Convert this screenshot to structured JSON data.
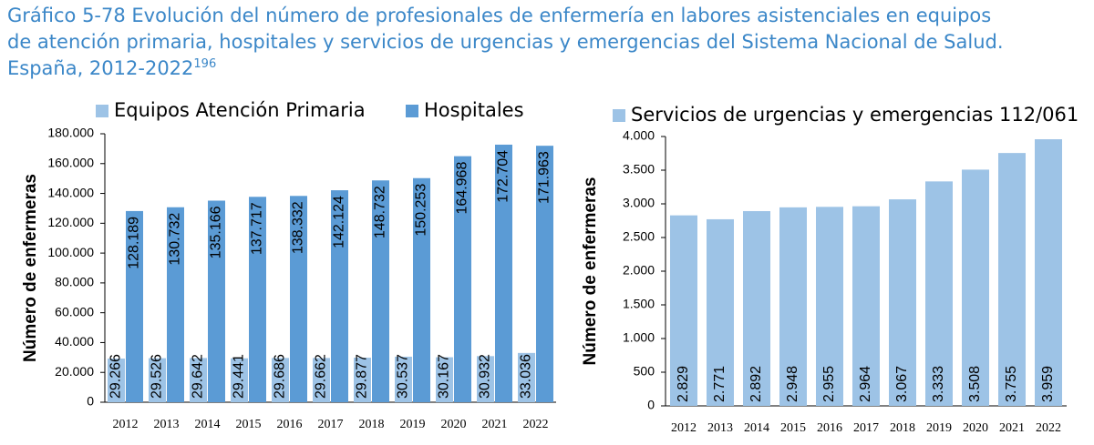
{
  "header": {
    "title": [
      "Gráfico 5-78 Evolución del número de profesionales de enfermería en labores asistenciales en equipos",
      "de atención primaria, hospitales y servicios de urgencias y emergencias del Sistema Nacional de Salud.",
      "España, 2012-2022"
    ],
    "title_note": "196"
  },
  "chart_data": [
    {
      "type": "bar",
      "y_label": "Número de enfermeras",
      "categories": [
        "2012",
        "2013",
        "2014",
        "2015",
        "2016",
        "2017",
        "2018",
        "2019",
        "2020",
        "2021",
        "2022"
      ],
      "series": [
        {
          "name": "Equipos Atención Primaria",
          "color": "#9dc3e6",
          "values": [
            29266,
            29526,
            29642,
            29441,
            29686,
            29662,
            29877,
            30537,
            30167,
            30932,
            33036
          ],
          "value_labels": [
            "29.266",
            "29.526",
            "29.642",
            "29.441",
            "29.686",
            "29.662",
            "29.877",
            "30.537",
            "30.167",
            "30.932",
            "33.036"
          ]
        },
        {
          "name": "Hospitales",
          "color": "#5b9bd5",
          "values": [
            128189,
            130732,
            135166,
            137717,
            138332,
            142124,
            148732,
            150253,
            164968,
            172704,
            171963
          ],
          "value_labels": [
            "128.189",
            "130.732",
            "135.166",
            "137.717",
            "138.332",
            "142.124",
            "148.732",
            "150.253",
            "164.968",
            "172.704",
            "171.963"
          ]
        }
      ],
      "ylim": [
        0,
        180000
      ],
      "yticks": [
        0,
        {
          "value": 20000,
          "label": "20.000"
        },
        {
          "value": 40000,
          "label": "40.000"
        },
        {
          "value": 60000,
          "label": "60.000"
        },
        {
          "value": 80000,
          "label": "80.000"
        },
        {
          "value": 100000,
          "label": "100.000"
        },
        {
          "value": 120000,
          "label": "120.000"
        },
        {
          "value": 140000,
          "label": "140.000"
        },
        {
          "value": 160000,
          "label": "160.000"
        },
        {
          "value": 180000,
          "label": "180.000"
        }
      ]
    },
    {
      "type": "bar",
      "y_label": "Número de enfermeras",
      "categories": [
        "2012",
        "2013",
        "2014",
        "2015",
        "2016",
        "2017",
        "2018",
        "2019",
        "2020",
        "2021",
        "2022"
      ],
      "series": [
        {
          "name": "Servicios de urgencias y emergencias 112/061",
          "color": "#9dc3e6",
          "values": [
            2829,
            2771,
            2892,
            2948,
            2955,
            2964,
            3067,
            3333,
            3508,
            3755,
            3959
          ],
          "value_labels": [
            "2.829",
            "2.771",
            "2.892",
            "2.948",
            "2.955",
            "2.964",
            "3.067",
            "3.333",
            "3.508",
            "3.755",
            "3.959"
          ]
        }
      ],
      "ylim": [
        0,
        4000
      ],
      "yticks": [
        0,
        500,
        {
          "value": 1000,
          "label": "1.000"
        },
        {
          "value": 1500,
          "label": "1.500"
        },
        {
          "value": 2000,
          "label": "2.000"
        },
        {
          "value": 2500,
          "label": "2.500"
        },
        {
          "value": 3000,
          "label": "3.000"
        },
        {
          "value": 3500,
          "label": "3.500"
        },
        {
          "value": 4000,
          "label": "4.000"
        }
      ]
    }
  ]
}
